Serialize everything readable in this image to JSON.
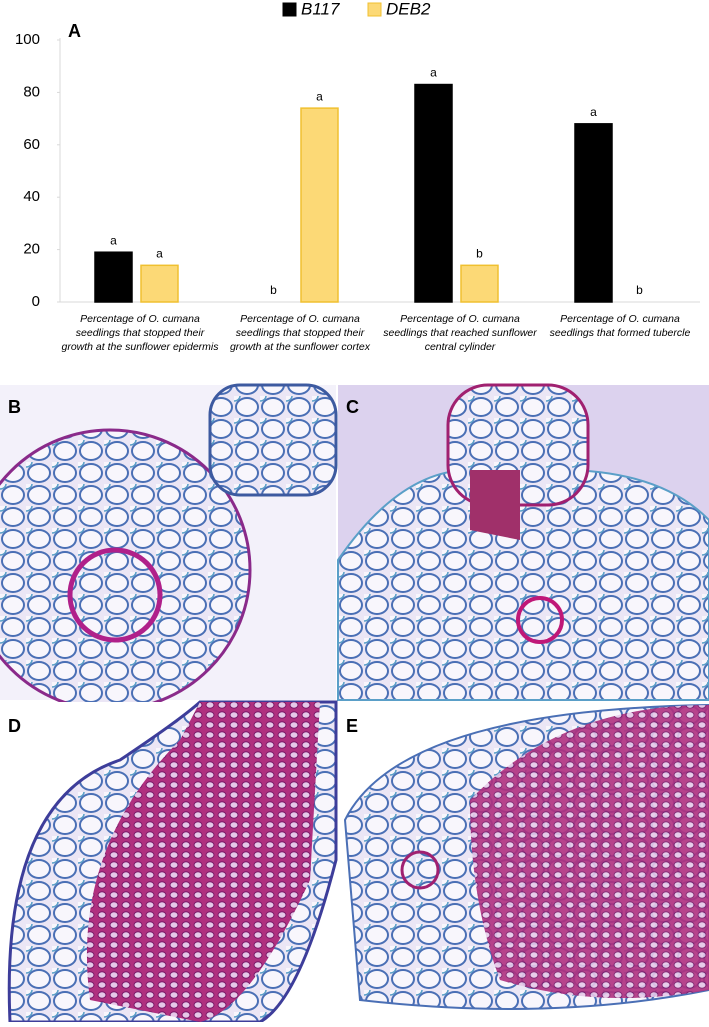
{
  "chart_data": {
    "type": "bar",
    "panel_label": "A",
    "categories": [
      "Percentage of O. cumana seedlings that stopped their growth at the sunflower epidermis",
      "Percentage of O. cumana seedlings that stopped their growth at the sunflower cortex",
      "Percentage of O. cumana seedlings that reached sunflower central cylinder",
      "Percentage of O. cumana seedlings that formed tubercle"
    ],
    "series": [
      {
        "name": "B117",
        "color": "#000000",
        "values": [
          19,
          0,
          83,
          68
        ],
        "letters": [
          "a",
          "b",
          "a",
          "a"
        ]
      },
      {
        "name": "DEB2",
        "color": "#fcd976",
        "values": [
          14,
          74,
          14,
          0
        ],
        "letters": [
          "a",
          "a",
          "b",
          "b"
        ]
      }
    ],
    "ylim": [
      0,
      100
    ],
    "yticks": [
      0,
      20,
      40,
      60,
      80,
      100
    ],
    "legend": "top"
  },
  "panels": [
    "B",
    "C",
    "D",
    "E"
  ]
}
